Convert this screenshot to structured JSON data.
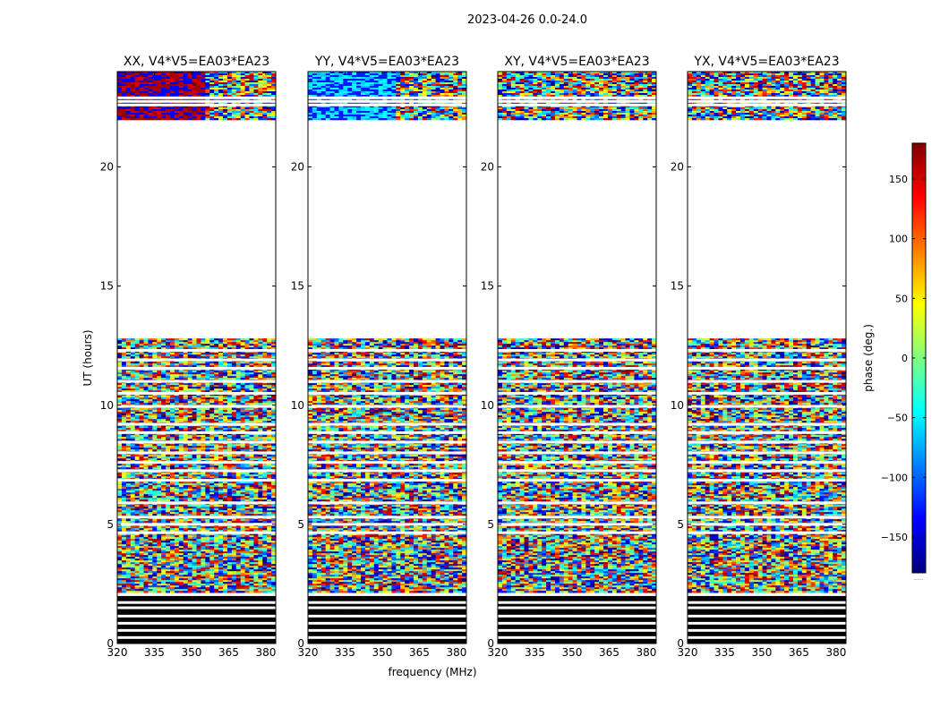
{
  "figure": {
    "suptitle": "2023-04-26 0.0-24.0",
    "xlabel": "frequency (MHz)",
    "ylabel": "UT (hours)"
  },
  "chart_data": {
    "type": "heatmap",
    "x_range": [
      320,
      384
    ],
    "y_range": [
      0,
      24
    ],
    "x_ticks": [
      320,
      335,
      350,
      365,
      380
    ],
    "y_ticks": [
      0,
      5,
      10,
      15,
      20
    ],
    "panels": [
      {
        "title": "XX, V4*V5=EA03*EA23",
        "polarization": "XX"
      },
      {
        "title": "YY, V4*V5=EA03*EA23",
        "polarization": "YY"
      },
      {
        "title": "XY, V4*V5=EA03*EA23",
        "polarization": "XY"
      },
      {
        "title": "YX, V4*V5=EA03*EA23",
        "polarization": "YX"
      }
    ],
    "data_intervals_hours": [
      [
        0.0,
        2.1
      ],
      [
        2.2,
        12.8
      ],
      [
        22.0,
        24.0
      ]
    ],
    "blank_rows_hours": [
      0.25,
      0.55,
      0.85,
      1.15,
      1.5,
      1.72,
      2.05,
      4.65,
      5.0,
      5.3,
      5.9,
      6.85,
      7.25,
      7.6,
      8.0,
      8.45,
      8.85,
      9.2,
      9.95,
      10.5,
      11.0,
      11.55,
      11.9,
      12.3,
      22.6,
      22.75,
      22.9
    ],
    "colorbar": {
      "label": "phase (deg.)",
      "range": [
        -180,
        180
      ],
      "ticks": [
        -150,
        -100,
        -50,
        0,
        50,
        100,
        150
      ],
      "colormap": "jet",
      "below_label": "......"
    }
  }
}
